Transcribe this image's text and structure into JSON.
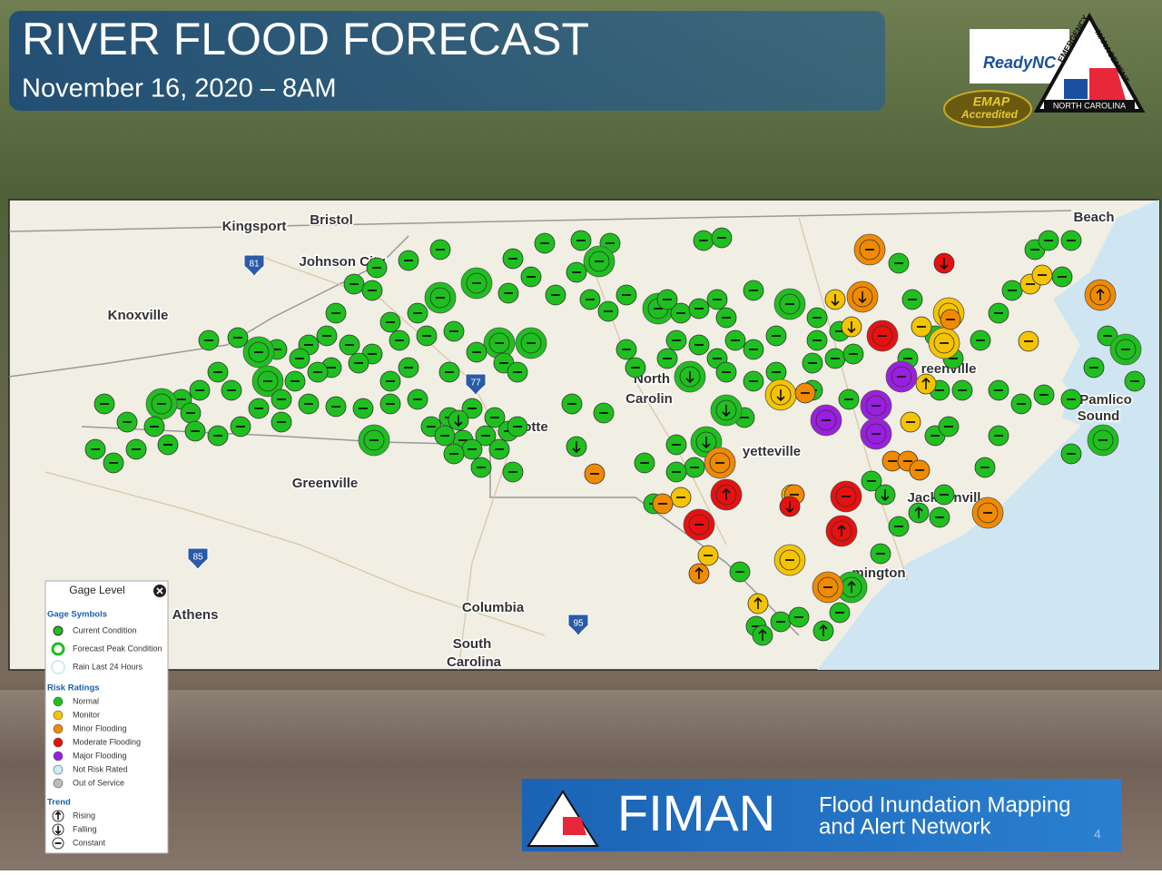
{
  "header": {
    "title": "RIVER FLOOD FORECAST",
    "date": "November 16, 2020 – 8AM"
  },
  "logos": {
    "ready": "ReadyNC",
    "emap": "EMAP",
    "accredited": "Accredited",
    "emergency": "EMERGENCY",
    "management": "MANAGEMENT",
    "state": "NORTH CAROLINA"
  },
  "map": {
    "labels": [
      "Kingsport",
      "Bristol",
      "Johnson City",
      "Knoxville",
      "Greenville",
      "Athens",
      "Columbia",
      "South",
      "Carolina",
      "Beach",
      "reenville",
      "yetteville",
      "Jacksonvill",
      "mington",
      "Pamlico",
      "Sound",
      "otte",
      "North",
      "Carolin"
    ],
    "shields": [
      "81",
      "77",
      "85",
      "95"
    ]
  },
  "legend": {
    "title": "Gage Level",
    "symbols_title": "Gage Symbols",
    "symbols": [
      "Current Condition",
      "Forecast Peak Condition",
      "Rain Last 24 Hours"
    ],
    "risk_title": "Risk Ratings",
    "risks": [
      {
        "label": "Normal",
        "color": "#1fbf1f"
      },
      {
        "label": "Monitor",
        "color": "#f5c400"
      },
      {
        "label": "Minor Flooding",
        "color": "#f08a00"
      },
      {
        "label": "Moderate Flooding",
        "color": "#e81010"
      },
      {
        "label": "Major Flooding",
        "color": "#9b1fe0"
      },
      {
        "label": "Not Risk Rated",
        "color": "#cdeef6"
      },
      {
        "label": "Out of Service",
        "color": "#bdbdbd"
      }
    ],
    "trend_title": "Trend",
    "trends": [
      "Rising",
      "Falling",
      "Constant"
    ]
  },
  "banner": {
    "name": "FIMAN",
    "line1": "Flood Inundation Mapping",
    "line2": "and Alert Network",
    "page": "4"
  }
}
